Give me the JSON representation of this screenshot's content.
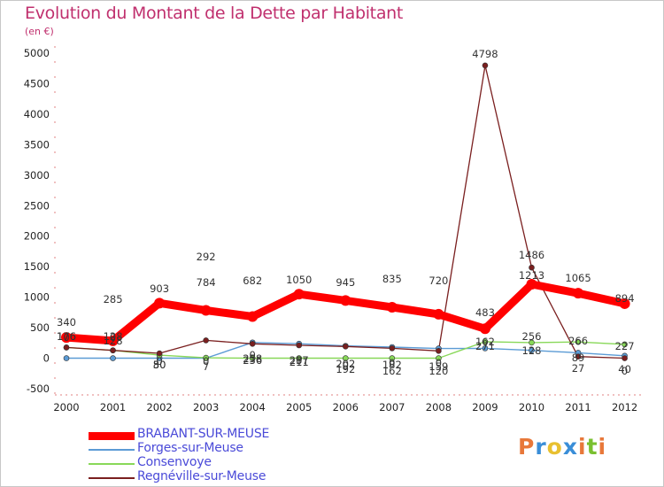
{
  "title": "Evolution du Montant de la Dette par Habitant",
  "subtitle": "(en €)",
  "logo": {
    "text": "Proxiti",
    "colors": [
      "#e8783a",
      "#3a8ed8",
      "#e8c030",
      "#3a8ed8",
      "#e8783a",
      "#7ac030",
      "#e8783a"
    ]
  },
  "chart_data": {
    "type": "line",
    "x": [
      "2000",
      "2001",
      "2002",
      "2003",
      "2004",
      "2005",
      "2006",
      "2007",
      "2008",
      "2009",
      "2010",
      "2011",
      "2012"
    ],
    "ylim": [
      -500,
      5000
    ],
    "yticks": [
      "-500",
      "0",
      "500",
      "1000",
      "1500",
      "2000",
      "2500",
      "3000",
      "3500",
      "4000",
      "4500",
      "5000"
    ],
    "legend_position": "bottom-left",
    "series": [
      {
        "name": "BRABANT-SUR-MEUSE",
        "color": "#ff0000",
        "values": [
          340,
          285,
          903,
          784,
          682,
          1050,
          945,
          835,
          720,
          483,
          1213,
          1065,
          894
        ],
        "labels": [
          "340",
          "285",
          "903",
          "784",
          "682",
          "1050",
          "945",
          "835",
          "720",
          "483",
          "1213",
          "1065",
          "894"
        ]
      },
      {
        "name": "Forges-sur-Meuse",
        "color": "#5b9bd5",
        "values": [
          0,
          0,
          0,
          0,
          258,
          237,
          202,
          182,
          159,
          162,
          128,
          89,
          40
        ],
        "labels": [
          "0",
          "0",
          "0",
          "0",
          "258",
          "237",
          "202",
          "182",
          "159",
          "162",
          "128",
          "89",
          "40"
        ]
      },
      {
        "name": "Consenvoye",
        "color": "#88d858",
        "values": [
          176,
          128,
          50,
          7,
          0,
          0,
          0,
          0,
          0,
          271,
          256,
          266,
          227
        ],
        "labels": [
          "176",
          "128",
          "50",
          "7",
          "0",
          "0",
          "0",
          "0",
          "0",
          "271",
          "256",
          "266",
          "227"
        ]
      },
      {
        "name": "Regnéville-sur-Meuse",
        "color": "#7a1f1f",
        "values": [
          176,
          128,
          80,
          292,
          236,
          211,
          192,
          162,
          120,
          4798,
          1486,
          27,
          0
        ],
        "labels": [
          "176",
          "128",
          "80",
          "292",
          "236",
          "211",
          "192",
          "162",
          "120",
          "4798",
          "1486",
          "27",
          "0"
        ]
      }
    ]
  }
}
